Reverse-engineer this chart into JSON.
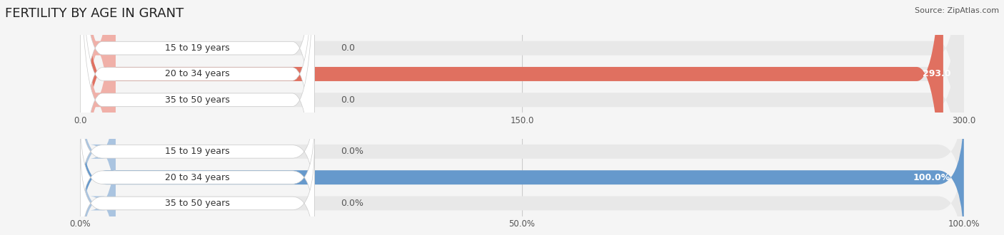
{
  "title": "FERTILITY BY AGE IN GRANT",
  "source": "Source: ZipAtlas.com",
  "top_chart": {
    "categories": [
      "15 to 19 years",
      "20 to 34 years",
      "35 to 50 years"
    ],
    "values": [
      0.0,
      293.0,
      0.0
    ],
    "max_value": 300.0,
    "tick_values": [
      0.0,
      150.0,
      300.0
    ],
    "tick_labels": [
      "0.0",
      "150.0",
      "300.0"
    ],
    "bar_color_full": "#e07060",
    "bar_color_light": "#f0b0a8",
    "label_inside_color": "#ffffff",
    "label_outside_color": "#555555"
  },
  "bottom_chart": {
    "categories": [
      "15 to 19 years",
      "20 to 34 years",
      "35 to 50 years"
    ],
    "values": [
      0.0,
      100.0,
      0.0
    ],
    "max_value": 100.0,
    "tick_values": [
      0.0,
      50.0,
      100.0
    ],
    "tick_labels": [
      "0.0%",
      "50.0%",
      "100.0%"
    ],
    "bar_color_full": "#6699cc",
    "bar_color_light": "#aac4e0",
    "label_inside_color": "#ffffff",
    "label_outside_color": "#555555"
  },
  "background_color": "#f5f5f5",
  "bar_bg_color": "#e8e8e8",
  "title_fontsize": 13,
  "label_fontsize": 9,
  "tick_fontsize": 8.5,
  "source_fontsize": 8
}
